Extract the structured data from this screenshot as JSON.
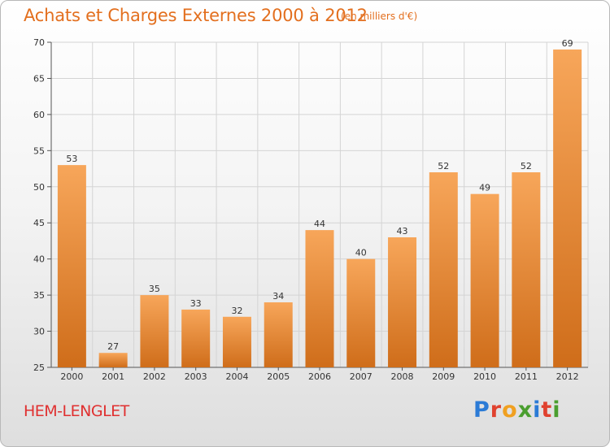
{
  "title": "Achats et Charges Externes 2000 à 2012",
  "subtitle": "(en milliers d'€)",
  "city": "HEM-LENGLET",
  "logo": {
    "letters": [
      "P",
      "r",
      "o",
      "x",
      "i",
      "t",
      "i"
    ],
    "colors": [
      "#2b7bd6",
      "#e0422f",
      "#f0a020",
      "#4a9e2f",
      "#2b7bd6",
      "#e0422f",
      "#4a9e2f"
    ]
  },
  "colors": {
    "bar_top": "#f7a65a",
    "bar_bottom": "#cf6d1a",
    "title": "#e36f1e",
    "city": "#e03030"
  },
  "chart_data": {
    "type": "bar",
    "categories": [
      "2000",
      "2001",
      "2002",
      "2003",
      "2004",
      "2005",
      "2006",
      "2007",
      "2008",
      "2009",
      "2010",
      "2011",
      "2012"
    ],
    "values": [
      53,
      27,
      35,
      33,
      32,
      34,
      44,
      40,
      43,
      52,
      49,
      52,
      69
    ],
    "ylim": [
      25,
      70
    ],
    "yticks": [
      25,
      30,
      35,
      40,
      45,
      50,
      55,
      60,
      65,
      70
    ],
    "grid": true,
    "xlabel": "",
    "ylabel": ""
  }
}
